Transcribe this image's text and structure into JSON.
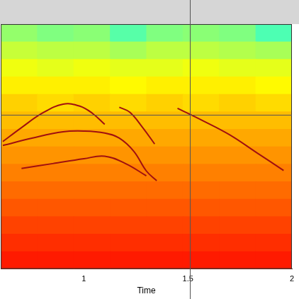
{
  "chart_data": {
    "type": "heatmap",
    "x_label": "Time",
    "xlim": [
      0.6,
      2.0
    ],
    "xticks": [
      1,
      1.5,
      2
    ],
    "ylim": [
      0,
      100
    ],
    "tick_labels": "x",
    "grid": false,
    "zlim": [
      0,
      100
    ],
    "cells": [
      [
        52,
        50,
        51,
        46,
        50,
        51,
        50,
        45
      ],
      [
        57,
        56,
        56,
        54,
        56,
        56,
        55,
        54
      ],
      [
        61,
        60,
        61,
        60,
        60,
        61,
        60,
        60
      ],
      [
        64,
        64,
        64,
        63,
        64,
        64,
        64,
        63
      ],
      [
        67,
        66,
        67,
        66,
        67,
        66,
        67,
        66
      ],
      [
        69,
        69,
        69,
        69,
        69,
        69,
        69,
        69
      ],
      [
        71,
        71,
        71,
        71,
        71,
        71,
        71,
        71
      ],
      [
        73,
        73,
        73,
        73,
        73,
        73,
        73,
        73
      ],
      [
        75,
        75,
        75,
        75,
        75,
        75,
        75,
        75
      ],
      [
        77,
        77,
        77,
        77,
        77,
        77,
        77,
        77
      ],
      [
        79,
        79,
        79,
        79,
        79,
        79,
        79,
        79
      ],
      [
        81,
        81,
        81,
        81,
        81,
        81,
        81,
        81
      ],
      [
        83,
        83,
        83,
        83,
        83,
        83,
        83,
        83
      ],
      [
        85,
        85,
        85,
        85,
        85,
        85,
        85,
        85
      ]
    ],
    "series": [
      {
        "color": "#a01010",
        "x": [
          0.61,
          0.7,
          0.8,
          0.9,
          0.98,
          1.04,
          1.1
        ],
        "values": [
          52,
          57.7,
          63.6,
          67.3,
          66.5,
          63.6,
          59
        ]
      },
      {
        "color": "#a01010",
        "x": [
          0.61,
          0.75,
          0.9,
          1.0,
          1.1,
          1.17,
          1.24,
          1.3,
          1.35
        ],
        "values": [
          50.4,
          53.4,
          56,
          56.3,
          55.5,
          53.4,
          48,
          40,
          36
        ]
      },
      {
        "color": "#a01010",
        "x": [
          0.7,
          0.85,
          1.0,
          1.1,
          1.2,
          1.3
        ],
        "values": [
          41,
          43,
          45,
          46,
          43,
          38
        ]
      },
      {
        "color": "#a01010",
        "x": [
          1.17,
          1.22,
          1.28,
          1.34
        ],
        "values": [
          66,
          64,
          58,
          51
        ]
      },
      {
        "color": "#a01010",
        "x": [
          1.45,
          1.57,
          1.7,
          1.83,
          1.96
        ],
        "values": [
          65.6,
          60.6,
          54.8,
          47.5,
          40.2
        ]
      }
    ],
    "cursor": {
      "x": 1.51,
      "y": 63
    }
  }
}
